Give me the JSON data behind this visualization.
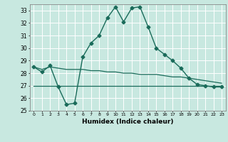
{
  "xlabel": "Humidex (Indice chaleur)",
  "x": [
    0,
    1,
    2,
    3,
    4,
    5,
    6,
    7,
    8,
    9,
    10,
    11,
    12,
    13,
    14,
    15,
    16,
    17,
    18,
    19,
    20,
    21,
    22,
    23
  ],
  "line1": [
    28.5,
    28.1,
    28.6,
    26.9,
    25.5,
    25.6,
    29.3,
    30.4,
    31.0,
    32.4,
    33.3,
    32.1,
    33.2,
    33.3,
    31.7,
    30.0,
    29.5,
    29.0,
    28.4,
    27.6,
    27.1,
    27.0,
    26.9,
    26.9
  ],
  "line2": [
    28.5,
    28.3,
    28.5,
    28.4,
    28.3,
    28.3,
    28.3,
    28.2,
    28.2,
    28.1,
    28.1,
    28.0,
    28.0,
    27.9,
    27.9,
    27.9,
    27.8,
    27.7,
    27.7,
    27.6,
    27.5,
    27.4,
    27.3,
    27.2
  ],
  "line3": [
    27.0,
    27.0,
    27.0,
    27.0,
    27.0,
    27.0,
    27.0,
    27.0,
    27.0,
    27.0,
    27.0,
    27.0,
    27.0,
    27.0,
    27.0,
    27.0,
    27.0,
    27.0,
    27.0,
    27.0,
    27.0,
    27.0,
    27.0,
    27.0
  ],
  "line_color": "#1a6b5a",
  "bg_color": "#c8e8e0",
  "grid_color": "#ffffff",
  "ylim": [
    25,
    33.5
  ],
  "yticks": [
    25,
    26,
    27,
    28,
    29,
    30,
    31,
    32,
    33
  ],
  "xticks": [
    0,
    1,
    2,
    3,
    4,
    5,
    6,
    7,
    8,
    9,
    10,
    11,
    12,
    13,
    14,
    15,
    16,
    17,
    18,
    19,
    20,
    21,
    22,
    23
  ]
}
